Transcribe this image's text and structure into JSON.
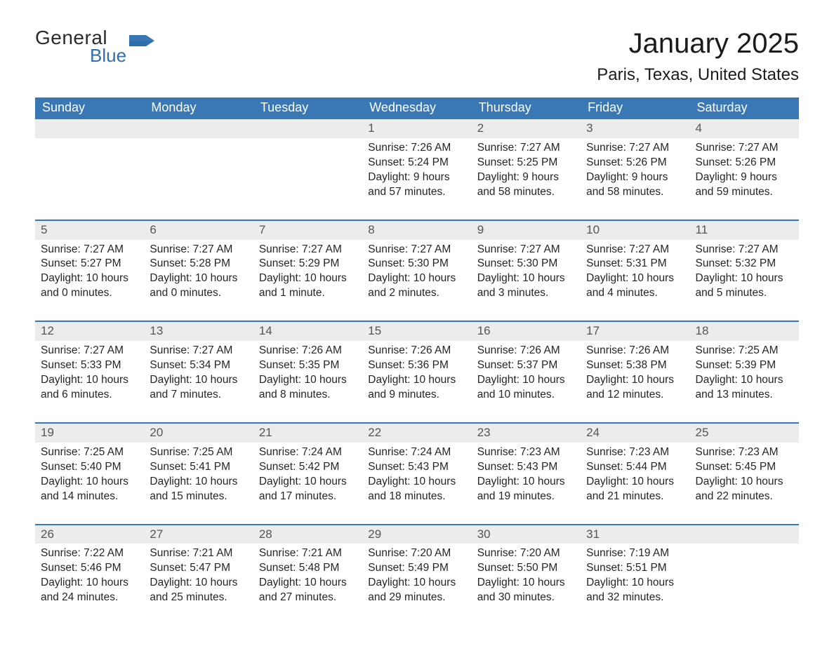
{
  "brand": {
    "general": "General",
    "blue": "Blue"
  },
  "title": {
    "month": "January 2025",
    "location": "Paris, Texas, United States"
  },
  "colors": {
    "header_bg": "#3a78b5",
    "header_text": "#ffffff",
    "row_divider": "#3a78b5",
    "daynum_band_bg": "#ececec",
    "daynum_text": "#555555",
    "body_text": "#252525",
    "logo_blue": "#2f6fad",
    "logo_dark": "#2b2b2b",
    "page_bg": "#ffffff"
  },
  "weekdays": [
    "Sunday",
    "Monday",
    "Tuesday",
    "Wednesday",
    "Thursday",
    "Friday",
    "Saturday"
  ],
  "weeks": [
    [
      {
        "blank": true
      },
      {
        "blank": true
      },
      {
        "blank": true
      },
      {
        "day": "1",
        "sunrise": "Sunrise: 7:26 AM",
        "sunset": "Sunset: 5:24 PM",
        "d1": "Daylight: 9 hours",
        "d2": "and 57 minutes."
      },
      {
        "day": "2",
        "sunrise": "Sunrise: 7:27 AM",
        "sunset": "Sunset: 5:25 PM",
        "d1": "Daylight: 9 hours",
        "d2": "and 58 minutes."
      },
      {
        "day": "3",
        "sunrise": "Sunrise: 7:27 AM",
        "sunset": "Sunset: 5:26 PM",
        "d1": "Daylight: 9 hours",
        "d2": "and 58 minutes."
      },
      {
        "day": "4",
        "sunrise": "Sunrise: 7:27 AM",
        "sunset": "Sunset: 5:26 PM",
        "d1": "Daylight: 9 hours",
        "d2": "and 59 minutes."
      }
    ],
    [
      {
        "day": "5",
        "sunrise": "Sunrise: 7:27 AM",
        "sunset": "Sunset: 5:27 PM",
        "d1": "Daylight: 10 hours",
        "d2": "and 0 minutes."
      },
      {
        "day": "6",
        "sunrise": "Sunrise: 7:27 AM",
        "sunset": "Sunset: 5:28 PM",
        "d1": "Daylight: 10 hours",
        "d2": "and 0 minutes."
      },
      {
        "day": "7",
        "sunrise": "Sunrise: 7:27 AM",
        "sunset": "Sunset: 5:29 PM",
        "d1": "Daylight: 10 hours",
        "d2": "and 1 minute."
      },
      {
        "day": "8",
        "sunrise": "Sunrise: 7:27 AM",
        "sunset": "Sunset: 5:30 PM",
        "d1": "Daylight: 10 hours",
        "d2": "and 2 minutes."
      },
      {
        "day": "9",
        "sunrise": "Sunrise: 7:27 AM",
        "sunset": "Sunset: 5:30 PM",
        "d1": "Daylight: 10 hours",
        "d2": "and 3 minutes."
      },
      {
        "day": "10",
        "sunrise": "Sunrise: 7:27 AM",
        "sunset": "Sunset: 5:31 PM",
        "d1": "Daylight: 10 hours",
        "d2": "and 4 minutes."
      },
      {
        "day": "11",
        "sunrise": "Sunrise: 7:27 AM",
        "sunset": "Sunset: 5:32 PM",
        "d1": "Daylight: 10 hours",
        "d2": "and 5 minutes."
      }
    ],
    [
      {
        "day": "12",
        "sunrise": "Sunrise: 7:27 AM",
        "sunset": "Sunset: 5:33 PM",
        "d1": "Daylight: 10 hours",
        "d2": "and 6 minutes."
      },
      {
        "day": "13",
        "sunrise": "Sunrise: 7:27 AM",
        "sunset": "Sunset: 5:34 PM",
        "d1": "Daylight: 10 hours",
        "d2": "and 7 minutes."
      },
      {
        "day": "14",
        "sunrise": "Sunrise: 7:26 AM",
        "sunset": "Sunset: 5:35 PM",
        "d1": "Daylight: 10 hours",
        "d2": "and 8 minutes."
      },
      {
        "day": "15",
        "sunrise": "Sunrise: 7:26 AM",
        "sunset": "Sunset: 5:36 PM",
        "d1": "Daylight: 10 hours",
        "d2": "and 9 minutes."
      },
      {
        "day": "16",
        "sunrise": "Sunrise: 7:26 AM",
        "sunset": "Sunset: 5:37 PM",
        "d1": "Daylight: 10 hours",
        "d2": "and 10 minutes."
      },
      {
        "day": "17",
        "sunrise": "Sunrise: 7:26 AM",
        "sunset": "Sunset: 5:38 PM",
        "d1": "Daylight: 10 hours",
        "d2": "and 12 minutes."
      },
      {
        "day": "18",
        "sunrise": "Sunrise: 7:25 AM",
        "sunset": "Sunset: 5:39 PM",
        "d1": "Daylight: 10 hours",
        "d2": "and 13 minutes."
      }
    ],
    [
      {
        "day": "19",
        "sunrise": "Sunrise: 7:25 AM",
        "sunset": "Sunset: 5:40 PM",
        "d1": "Daylight: 10 hours",
        "d2": "and 14 minutes."
      },
      {
        "day": "20",
        "sunrise": "Sunrise: 7:25 AM",
        "sunset": "Sunset: 5:41 PM",
        "d1": "Daylight: 10 hours",
        "d2": "and 15 minutes."
      },
      {
        "day": "21",
        "sunrise": "Sunrise: 7:24 AM",
        "sunset": "Sunset: 5:42 PM",
        "d1": "Daylight: 10 hours",
        "d2": "and 17 minutes."
      },
      {
        "day": "22",
        "sunrise": "Sunrise: 7:24 AM",
        "sunset": "Sunset: 5:43 PM",
        "d1": "Daylight: 10 hours",
        "d2": "and 18 minutes."
      },
      {
        "day": "23",
        "sunrise": "Sunrise: 7:23 AM",
        "sunset": "Sunset: 5:43 PM",
        "d1": "Daylight: 10 hours",
        "d2": "and 19 minutes."
      },
      {
        "day": "24",
        "sunrise": "Sunrise: 7:23 AM",
        "sunset": "Sunset: 5:44 PM",
        "d1": "Daylight: 10 hours",
        "d2": "and 21 minutes."
      },
      {
        "day": "25",
        "sunrise": "Sunrise: 7:23 AM",
        "sunset": "Sunset: 5:45 PM",
        "d1": "Daylight: 10 hours",
        "d2": "and 22 minutes."
      }
    ],
    [
      {
        "day": "26",
        "sunrise": "Sunrise: 7:22 AM",
        "sunset": "Sunset: 5:46 PM",
        "d1": "Daylight: 10 hours",
        "d2": "and 24 minutes."
      },
      {
        "day": "27",
        "sunrise": "Sunrise: 7:21 AM",
        "sunset": "Sunset: 5:47 PM",
        "d1": "Daylight: 10 hours",
        "d2": "and 25 minutes."
      },
      {
        "day": "28",
        "sunrise": "Sunrise: 7:21 AM",
        "sunset": "Sunset: 5:48 PM",
        "d1": "Daylight: 10 hours",
        "d2": "and 27 minutes."
      },
      {
        "day": "29",
        "sunrise": "Sunrise: 7:20 AM",
        "sunset": "Sunset: 5:49 PM",
        "d1": "Daylight: 10 hours",
        "d2": "and 29 minutes."
      },
      {
        "day": "30",
        "sunrise": "Sunrise: 7:20 AM",
        "sunset": "Sunset: 5:50 PM",
        "d1": "Daylight: 10 hours",
        "d2": "and 30 minutes."
      },
      {
        "day": "31",
        "sunrise": "Sunrise: 7:19 AM",
        "sunset": "Sunset: 5:51 PM",
        "d1": "Daylight: 10 hours",
        "d2": "and 32 minutes."
      },
      {
        "blank": true
      }
    ]
  ]
}
